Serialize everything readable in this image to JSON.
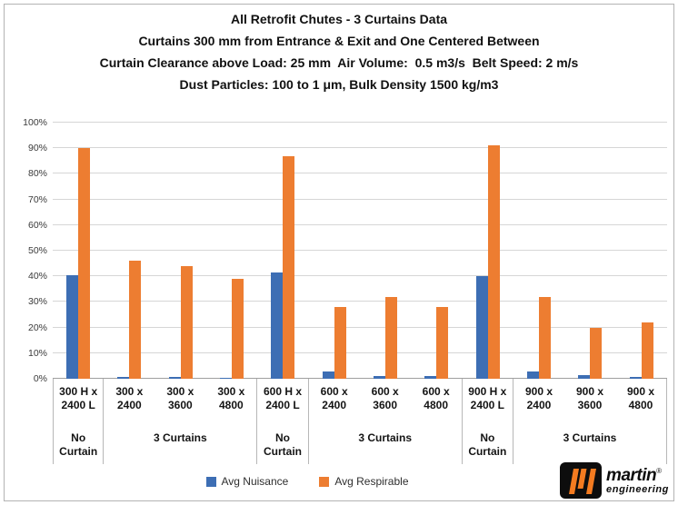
{
  "title": {
    "line1": "All Retrofit Chutes - 3 Curtains Data",
    "line2": "Curtains 300 mm from Entrance & Exit and One Centered Between",
    "line3": "Curtain Clearance above Load: 25 mm  Air Volume:  0.5 m3/s  Belt Speed: 2 m/s",
    "line4": "Dust Particles: 100 to 1 μm, Bulk Density 1500 kg/m3"
  },
  "chart_data": {
    "type": "bar",
    "title": "All Retrofit Chutes - 3 Curtains Data",
    "xlabel": "",
    "ylabel": "",
    "ylim": [
      0,
      100
    ],
    "ytick_step": 10,
    "ytick_suffix": "%",
    "grid": true,
    "legend_position": "bottom",
    "series": [
      {
        "name": "Avg Nuisance",
        "color": "#3D6EB4"
      },
      {
        "name": "Avg Respirable",
        "color": "#ED7D31"
      }
    ],
    "groups": [
      {
        "label": [
          "300 H x",
          "2400 L"
        ],
        "values": [
          40.5,
          90
        ]
      },
      {
        "label": [
          "300 x",
          "2400"
        ],
        "values": [
          0.7,
          46
        ]
      },
      {
        "label": [
          "300 x",
          "3600"
        ],
        "values": [
          0.7,
          44
        ]
      },
      {
        "label": [
          "300 x",
          "4800"
        ],
        "values": [
          0.4,
          39
        ]
      },
      {
        "label": [
          "600 H x",
          "2400 L"
        ],
        "values": [
          41.5,
          87
        ]
      },
      {
        "label": [
          "600 x",
          "2400"
        ],
        "values": [
          3,
          28
        ]
      },
      {
        "label": [
          "600 x",
          "3600"
        ],
        "values": [
          1,
          32
        ]
      },
      {
        "label": [
          "600 x",
          "4800"
        ],
        "values": [
          1,
          28
        ]
      },
      {
        "label": [
          "900 H x",
          "2400 L"
        ],
        "values": [
          40,
          91
        ]
      },
      {
        "label": [
          "900 x",
          "2400"
        ],
        "values": [
          3,
          32
        ]
      },
      {
        "label": [
          "900 x",
          "3600"
        ],
        "values": [
          1.5,
          20
        ]
      },
      {
        "label": [
          "900 x",
          "4800"
        ],
        "values": [
          0.7,
          22
        ]
      }
    ],
    "sections": [
      {
        "label": "No Curtain",
        "span": 1
      },
      {
        "label": "3 Curtains",
        "span": 3
      },
      {
        "label": "No Curtain",
        "span": 1
      },
      {
        "label": "3 Curtains",
        "span": 3
      },
      {
        "label": "No Curtain",
        "span": 1
      },
      {
        "label": "3 Curtains",
        "span": 3
      }
    ]
  },
  "legend": {
    "items": [
      {
        "label": "Avg Nuisance",
        "color": "#3D6EB4"
      },
      {
        "label": "Avg Respirable",
        "color": "#ED7D31"
      }
    ]
  },
  "logo": {
    "brand": "martin",
    "registered": "®",
    "sub": "engineering",
    "accent_color": "#F47B20",
    "box_color": "#0d0d0d"
  }
}
